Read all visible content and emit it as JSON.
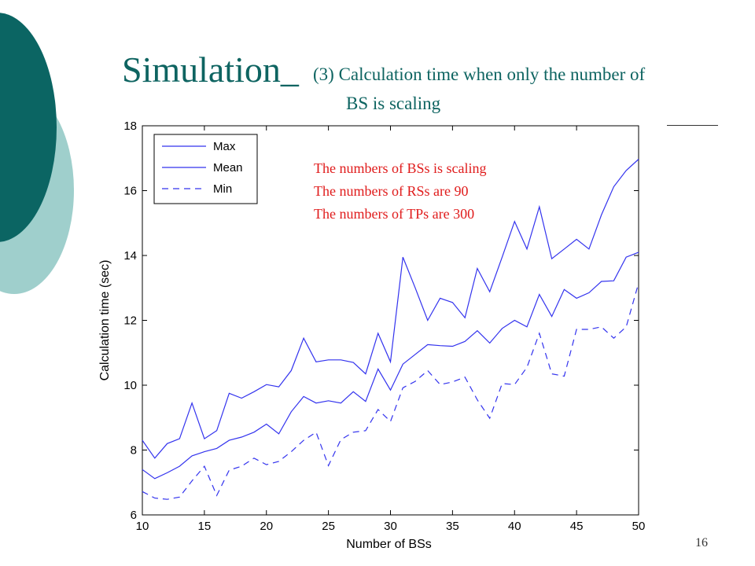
{
  "slide": {
    "title": "Simulation_",
    "subtitle_line1": "(3) Calculation time when only the number of",
    "subtitle_line2": "BS is scaling",
    "page_number": "16"
  },
  "colors": {
    "title": "#0e6461",
    "series": "#3333ee",
    "annotation": "#e01b1b",
    "deco_dark": "#0b6563",
    "deco_light": "#9fcfcc"
  },
  "chart_data": {
    "type": "line",
    "xlabel": "Number of BSs",
    "ylabel": "Calculation time (sec)",
    "xlim": [
      10,
      50
    ],
    "ylim": [
      6,
      18
    ],
    "xticks": [
      10,
      15,
      20,
      25,
      30,
      35,
      40,
      45,
      50
    ],
    "yticks": [
      6,
      8,
      10,
      12,
      14,
      16,
      18
    ],
    "legend_position": "top-left",
    "annotations": [
      "The numbers of BSs is scaling",
      "The numbers of RSs  are 90",
      "The numbers of TPs  are 300"
    ],
    "x": [
      10,
      11,
      12,
      13,
      14,
      15,
      16,
      17,
      18,
      19,
      20,
      21,
      22,
      23,
      24,
      25,
      26,
      27,
      28,
      29,
      30,
      31,
      32,
      33,
      34,
      35,
      36,
      37,
      38,
      39,
      40,
      41,
      42,
      43,
      44,
      45,
      46,
      47,
      48,
      49,
      50
    ],
    "series": [
      {
        "name": "Max",
        "style": "solid",
        "values": [
          8.3,
          7.75,
          8.2,
          8.35,
          9.45,
          8.35,
          8.6,
          9.75,
          9.6,
          9.8,
          10.02,
          9.95,
          10.45,
          11.45,
          10.72,
          10.78,
          10.78,
          10.7,
          10.35,
          11.6,
          10.72,
          13.95,
          13.0,
          12.0,
          12.68,
          12.55,
          12.08,
          13.6,
          12.88,
          13.95,
          15.05,
          14.2,
          15.5,
          13.9,
          14.2,
          14.5,
          14.2,
          15.25,
          16.12,
          16.62,
          16.97
        ]
      },
      {
        "name": "Mean",
        "style": "solid",
        "values": [
          7.4,
          7.12,
          7.3,
          7.5,
          7.82,
          7.95,
          8.05,
          8.3,
          8.4,
          8.55,
          8.8,
          8.5,
          9.18,
          9.65,
          9.45,
          9.52,
          9.45,
          9.8,
          9.5,
          10.5,
          9.85,
          10.65,
          10.95,
          11.25,
          11.22,
          11.2,
          11.35,
          11.68,
          11.3,
          11.75,
          12.0,
          11.8,
          12.8,
          12.12,
          12.95,
          12.68,
          12.85,
          13.2,
          13.22,
          13.95,
          14.1
        ]
      },
      {
        "name": "Min",
        "style": "dashed",
        "values": [
          6.72,
          6.52,
          6.48,
          6.55,
          7.05,
          7.5,
          6.6,
          7.38,
          7.5,
          7.75,
          7.55,
          7.65,
          7.95,
          8.3,
          8.55,
          7.52,
          8.32,
          8.55,
          8.6,
          9.25,
          8.88,
          9.92,
          10.12,
          10.45,
          10.02,
          10.1,
          10.25,
          9.55,
          8.98,
          10.05,
          10.02,
          10.55,
          11.6,
          10.35,
          10.28,
          11.72,
          11.72,
          11.8,
          11.45,
          11.8,
          13.15
        ]
      }
    ]
  }
}
